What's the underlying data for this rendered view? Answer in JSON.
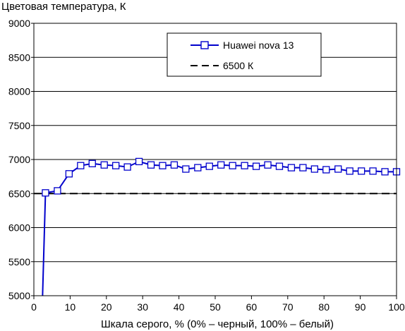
{
  "chart_data": {
    "type": "line",
    "title": "",
    "ylabel": "Цветовая температура, К",
    "xlabel": "Шкала серого, % (0% – черный, 100% – белый)",
    "xlim": [
      0,
      100
    ],
    "ylim": [
      5000,
      9000
    ],
    "x_ticks": [
      "0",
      "10",
      "20",
      "30",
      "40",
      "50",
      "60",
      "70",
      "80",
      "90",
      "100"
    ],
    "y_ticks": [
      "5000",
      "5500",
      "6000",
      "6500",
      "7000",
      "7500",
      "8000",
      "8500",
      "9000"
    ],
    "grid": "horizontal",
    "legend_position": "top-right",
    "series": [
      {
        "name": "Huawei nova 13",
        "color": "#0000cc",
        "marker": "square",
        "x": [
          2.4,
          3.2,
          6.5,
          9.7,
          12.9,
          16.1,
          19.4,
          22.6,
          25.8,
          29.0,
          32.3,
          35.5,
          38.7,
          41.9,
          45.2,
          48.4,
          51.6,
          54.8,
          58.1,
          61.3,
          64.5,
          67.7,
          71.0,
          74.2,
          77.4,
          80.6,
          83.9,
          87.1,
          90.3,
          93.5,
          96.8,
          100
        ],
        "values": [
          5000,
          6510,
          6540,
          6790,
          6910,
          6940,
          6920,
          6910,
          6890,
          6970,
          6920,
          6910,
          6920,
          6860,
          6880,
          6900,
          6920,
          6910,
          6910,
          6900,
          6920,
          6900,
          6880,
          6880,
          6860,
          6850,
          6860,
          6830,
          6830,
          6830,
          6820,
          6820
        ],
        "marker_from_index": 1
      },
      {
        "name": "6500 К",
        "color": "#000000",
        "style": "dashed",
        "x": [
          0,
          100
        ],
        "values": [
          6500,
          6500
        ]
      }
    ]
  }
}
